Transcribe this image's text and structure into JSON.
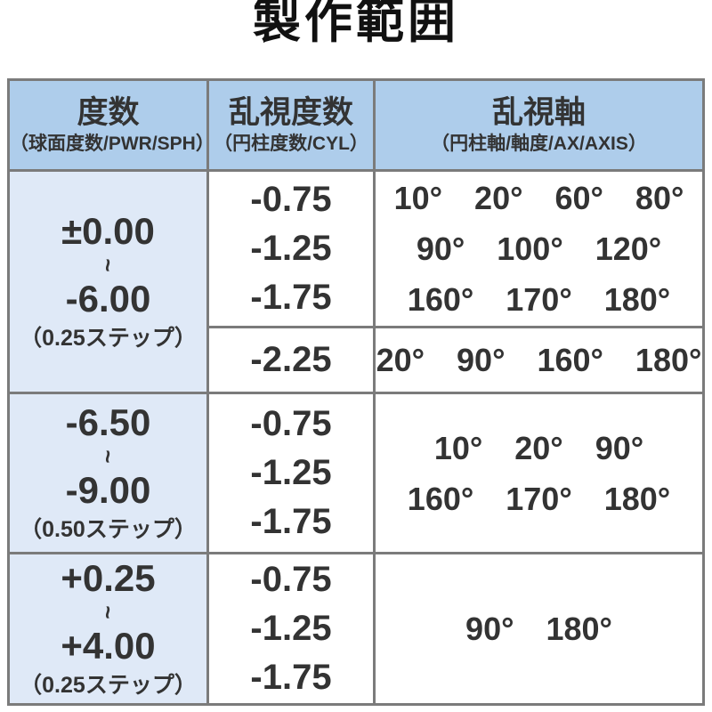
{
  "title": "製作範囲",
  "colors": {
    "header_bg": "#aecdeb",
    "sph_column_bg": "#dfe9f7",
    "border": "#7b7b7b",
    "text": "#333333",
    "title_text": "#111111"
  },
  "table": {
    "headers": [
      {
        "main": "度数",
        "sub": "（球面度数/PWR/SPH）"
      },
      {
        "main": "乱視度数",
        "sub": "（円柱度数/CYL）"
      },
      {
        "main": "乱視軸",
        "sub": "（円柱軸/軸度/AX/AXIS）"
      }
    ],
    "rows": [
      {
        "sph": {
          "from": "±0.00",
          "tilde": "~",
          "to": "-6.00",
          "step": "（0.25ステップ）"
        },
        "subrows": [
          {
            "cyl": [
              "-0.75",
              "-1.25",
              "-1.75"
            ],
            "axis": [
              "10°　20°　60°　80°",
              "90°　100°　120°",
              "160°　170°　180°"
            ]
          },
          {
            "cyl": [
              "-2.25"
            ],
            "axis": [
              "20°　90°　160°　180°"
            ]
          }
        ]
      },
      {
        "sph": {
          "from": "-6.50",
          "tilde": "~",
          "to": "-9.00",
          "step": "（0.50ステップ）"
        },
        "subrows": [
          {
            "cyl": [
              "-0.75",
              "-1.25",
              "-1.75"
            ],
            "axis": [
              "10°　20°　90°",
              "160°　170°　180°"
            ]
          }
        ]
      },
      {
        "sph": {
          "from": "+0.25",
          "tilde": "~",
          "to": "+4.00",
          "step": "（0.25ステップ）"
        },
        "subrows": [
          {
            "cyl": [
              "-0.75",
              "-1.25",
              "-1.75"
            ],
            "axis": [
              "90°　180°"
            ]
          }
        ]
      }
    ]
  }
}
